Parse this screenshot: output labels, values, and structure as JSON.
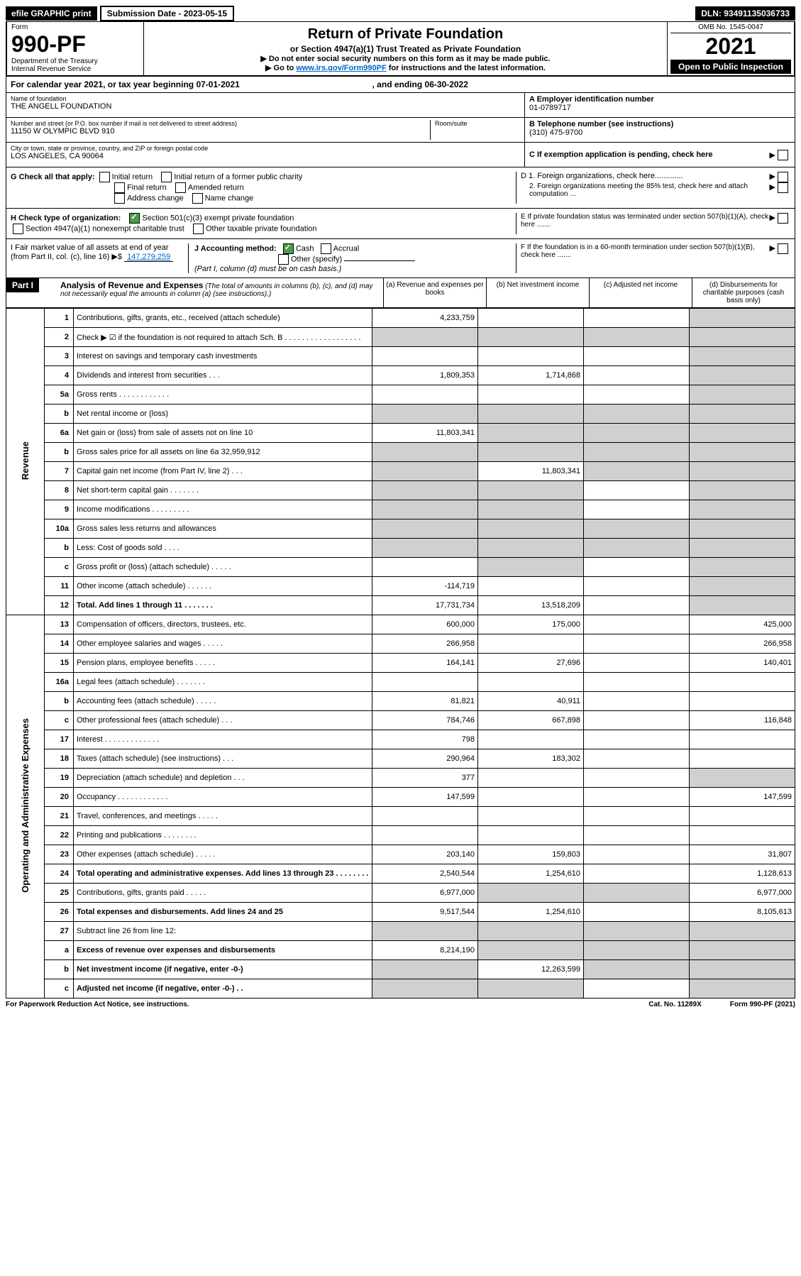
{
  "top": {
    "efile": "efile GRAPHIC print",
    "subdate_lbl": "Submission Date - 2023-05-15",
    "dln": "DLN: 93491135036733"
  },
  "header": {
    "form": "Form",
    "num": "990-PF",
    "dept": "Department of the Treasury",
    "irs": "Internal Revenue Service",
    "title": "Return of Private Foundation",
    "sub": "or Section 4947(a)(1) Trust Treated as Private Foundation",
    "instr1": "▶ Do not enter social security numbers on this form as it may be made public.",
    "instr2_pre": "▶ Go to ",
    "instr2_link": "www.irs.gov/Form990PF",
    "instr2_post": " for instructions and the latest information.",
    "omb": "OMB No. 1545-0047",
    "year": "2021",
    "open": "Open to Public Inspection"
  },
  "calyear": {
    "text_pre": "For calendar year 2021, or tax year beginning 07-01-2021",
    "text_mid": ", and ending 06-30-2022"
  },
  "info": {
    "name_lbl": "Name of foundation",
    "name": "THE ANGELL FOUNDATION",
    "addr_lbl": "Number and street (or P.O. box number if mail is not delivered to street address)",
    "addr": "11150 W OLYMPIC BLVD 910",
    "room_lbl": "Room/suite",
    "city_lbl": "City or town, state or province, country, and ZIP or foreign postal code",
    "city": "LOS ANGELES, CA  90064",
    "a_lbl": "A Employer identification number",
    "a_val": "01-0789717",
    "b_lbl": "B Telephone number (see instructions)",
    "b_val": "(310) 475-9700",
    "c_lbl": "C If exemption application is pending, check here",
    "d1": "D 1. Foreign organizations, check here.............",
    "d2": "2. Foreign organizations meeting the 85% test, check here and attach computation ...",
    "e": "E  If private foundation status was terminated under section 507(b)(1)(A), check here .......",
    "f": "F  If the foundation is in a 60-month termination under section 507(b)(1)(B), check here .......",
    "g_lbl": "G Check all that apply:",
    "g_opts": [
      "Initial return",
      "Initial return of a former public charity",
      "Final return",
      "Amended return",
      "Address change",
      "Name change"
    ],
    "h_lbl": "H Check type of organization:",
    "h_opts": [
      "Section 501(c)(3) exempt private foundation",
      "Section 4947(a)(1) nonexempt charitable trust",
      "Other taxable private foundation"
    ],
    "i_lbl": "I Fair market value of all assets at end of year (from Part II, col. (c), line 16) ▶$",
    "i_val": "147,279,259",
    "j_lbl": "J Accounting method:",
    "j_opts": [
      "Cash",
      "Accrual",
      "Other (specify)"
    ],
    "j_note": "(Part I, column (d) must be on cash basis.)"
  },
  "part1": {
    "label": "Part I",
    "title": "Analysis of Revenue and Expenses",
    "note": "(The total of amounts in columns (b), (c), and (d) may not necessarily equal the amounts in column (a) (see instructions).)",
    "cols": {
      "a": "(a)   Revenue and expenses per books",
      "b": "(b)  Net investment income",
      "c": "(c)  Adjusted net income",
      "d": "(d)  Disbursements for charitable purposes (cash basis only)"
    }
  },
  "sections": {
    "revenue": "Revenue",
    "opexp": "Operating and Administrative Expenses"
  },
  "rows": [
    {
      "n": "1",
      "d": "Contributions, gifts, grants, etc., received (attach schedule)",
      "a": "4,233,759",
      "b": "",
      "c": "",
      "dcol": "",
      "bgrey": false,
      "cgrey": false,
      "dgrey": true
    },
    {
      "n": "2",
      "d": "Check ▶ ☑ if the foundation is not required to attach Sch. B  . . . . . . . . . . . . . . . . . .",
      "a": "",
      "b": "",
      "c": "",
      "dcol": "",
      "agrey": true,
      "bgrey": true,
      "cgrey": true,
      "dgrey": true
    },
    {
      "n": "3",
      "d": "Interest on savings and temporary cash investments",
      "a": "",
      "b": "",
      "c": "",
      "dcol": "",
      "dgrey": true
    },
    {
      "n": "4",
      "d": "Dividends and interest from securities   .  .  .",
      "a": "1,809,353",
      "b": "1,714,868",
      "c": "",
      "dcol": "",
      "dgrey": true
    },
    {
      "n": "5a",
      "d": "Gross rents  .  .  .  .  .  .  .  .  .  .  .  .",
      "a": "",
      "b": "",
      "c": "",
      "dcol": "",
      "dgrey": true
    },
    {
      "n": "b",
      "d": "Net rental income or (loss)  ",
      "a": "",
      "b": "",
      "c": "",
      "dcol": "",
      "agrey": true,
      "bgrey": true,
      "cgrey": true,
      "dgrey": true
    },
    {
      "n": "6a",
      "d": "Net gain or (loss) from sale of assets not on line 10",
      "a": "11,803,341",
      "b": "",
      "c": "",
      "dcol": "",
      "bgrey": true,
      "cgrey": true,
      "dgrey": true
    },
    {
      "n": "b",
      "d": "Gross sales price for all assets on line 6a          32,959,912",
      "a": "",
      "b": "",
      "c": "",
      "dcol": "",
      "agrey": true,
      "bgrey": true,
      "cgrey": true,
      "dgrey": true
    },
    {
      "n": "7",
      "d": "Capital gain net income (from Part IV, line 2)  .  .  .",
      "a": "",
      "b": "11,803,341",
      "c": "",
      "dcol": "",
      "agrey": true,
      "cgrey": true,
      "dgrey": true
    },
    {
      "n": "8",
      "d": "Net short-term capital gain  .  .  .  .  .  .  .",
      "a": "",
      "b": "",
      "c": "",
      "dcol": "",
      "agrey": true,
      "bgrey": true,
      "dgrey": true
    },
    {
      "n": "9",
      "d": "Income modifications  .  .  .  .  .  .  .  .  .",
      "a": "",
      "b": "",
      "c": "",
      "dcol": "",
      "agrey": true,
      "bgrey": true,
      "dgrey": true
    },
    {
      "n": "10a",
      "d": "Gross sales less returns and allowances",
      "a": "",
      "b": "",
      "c": "",
      "dcol": "",
      "agrey": true,
      "bgrey": true,
      "cgrey": true,
      "dgrey": true
    },
    {
      "n": "b",
      "d": "Less: Cost of goods sold   .  .  .  .",
      "a": "",
      "b": "",
      "c": "",
      "dcol": "",
      "agrey": true,
      "bgrey": true,
      "cgrey": true,
      "dgrey": true
    },
    {
      "n": "c",
      "d": "Gross profit or (loss) (attach schedule)  .  .  .  .  .",
      "a": "",
      "b": "",
      "c": "",
      "dcol": "",
      "bgrey": true,
      "dgrey": true
    },
    {
      "n": "11",
      "d": "Other income (attach schedule)  .  .  .  .  .  .",
      "a": "-114,719",
      "b": "",
      "c": "",
      "dcol": "",
      "dgrey": true
    },
    {
      "n": "12",
      "d": "Total. Add lines 1 through 11  .  .  .  .  .  .  .",
      "a": "17,731,734",
      "b": "13,518,209",
      "c": "",
      "dcol": "",
      "bold": true,
      "dgrey": true
    }
  ],
  "exp_rows": [
    {
      "n": "13",
      "d": "Compensation of officers, directors, trustees, etc.",
      "a": "600,000",
      "b": "175,000",
      "c": "",
      "dcol": "425,000"
    },
    {
      "n": "14",
      "d": "Other employee salaries and wages  .  .  .  .  .",
      "a": "266,958",
      "b": "",
      "c": "",
      "dcol": "266,958"
    },
    {
      "n": "15",
      "d": "Pension plans, employee benefits  .  .  .  .  .",
      "a": "164,141",
      "b": "27,696",
      "c": "",
      "dcol": "140,401"
    },
    {
      "n": "16a",
      "d": "Legal fees (attach schedule)  .  .  .  .  .  .  .",
      "a": "",
      "b": "",
      "c": "",
      "dcol": ""
    },
    {
      "n": "b",
      "d": "Accounting fees (attach schedule)  .  .  .  .  .",
      "a": "81,821",
      "b": "40,911",
      "c": "",
      "dcol": ""
    },
    {
      "n": "c",
      "d": "Other professional fees (attach schedule)  .  .  .",
      "a": "784,746",
      "b": "667,898",
      "c": "",
      "dcol": "116,848"
    },
    {
      "n": "17",
      "d": "Interest  .  .  .  .  .  .  .  .  .  .  .  .  .",
      "a": "798",
      "b": "",
      "c": "",
      "dcol": ""
    },
    {
      "n": "18",
      "d": "Taxes (attach schedule) (see instructions)  .  .  .",
      "a": "290,964",
      "b": "183,302",
      "c": "",
      "dcol": ""
    },
    {
      "n": "19",
      "d": "Depreciation (attach schedule) and depletion  .  .  .",
      "a": "377",
      "b": "",
      "c": "",
      "dcol": "",
      "dgrey": true
    },
    {
      "n": "20",
      "d": "Occupancy  .  .  .  .  .  .  .  .  .  .  .  .",
      "a": "147,599",
      "b": "",
      "c": "",
      "dcol": "147,599"
    },
    {
      "n": "21",
      "d": "Travel, conferences, and meetings  .  .  .  .  .",
      "a": "",
      "b": "",
      "c": "",
      "dcol": ""
    },
    {
      "n": "22",
      "d": "Printing and publications  .  .  .  .  .  .  .  .",
      "a": "",
      "b": "",
      "c": "",
      "dcol": ""
    },
    {
      "n": "23",
      "d": "Other expenses (attach schedule)  .  .  .  .  .",
      "a": "203,140",
      "b": "159,803",
      "c": "",
      "dcol": "31,807"
    },
    {
      "n": "24",
      "d": "Total operating and administrative expenses. Add lines 13 through 23  .  .  .  .  .  .  .  .",
      "a": "2,540,544",
      "b": "1,254,610",
      "c": "",
      "dcol": "1,128,613",
      "bold": true
    },
    {
      "n": "25",
      "d": "Contributions, gifts, grants paid  .  .  .  .  .",
      "a": "6,977,000",
      "b": "",
      "c": "",
      "dcol": "6,977,000",
      "bgrey": true,
      "cgrey": true
    },
    {
      "n": "26",
      "d": "Total expenses and disbursements. Add lines 24 and 25",
      "a": "9,517,544",
      "b": "1,254,610",
      "c": "",
      "dcol": "8,105,613",
      "bold": true
    },
    {
      "n": "27",
      "d": "Subtract line 26 from line 12:",
      "a": "",
      "b": "",
      "c": "",
      "dcol": "",
      "agrey": true,
      "bgrey": true,
      "cgrey": true,
      "dgrey": true
    },
    {
      "n": "a",
      "d": "Excess of revenue over expenses and disbursements",
      "a": "8,214,190",
      "b": "",
      "c": "",
      "dcol": "",
      "bold": true,
      "bgrey": true,
      "cgrey": true,
      "dgrey": true
    },
    {
      "n": "b",
      "d": "Net investment income (if negative, enter -0-)",
      "a": "",
      "b": "12,263,599",
      "c": "",
      "dcol": "",
      "bold": true,
      "agrey": true,
      "cgrey": true,
      "dgrey": true
    },
    {
      "n": "c",
      "d": "Adjusted net income (if negative, enter -0-)  .  .",
      "a": "",
      "b": "",
      "c": "",
      "dcol": "",
      "bold": true,
      "agrey": true,
      "bgrey": true,
      "dgrey": true
    }
  ],
  "footer": {
    "left": "For Paperwork Reduction Act Notice, see instructions.",
    "cat": "Cat. No. 11289X",
    "form": "Form 990-PF (2021)"
  }
}
